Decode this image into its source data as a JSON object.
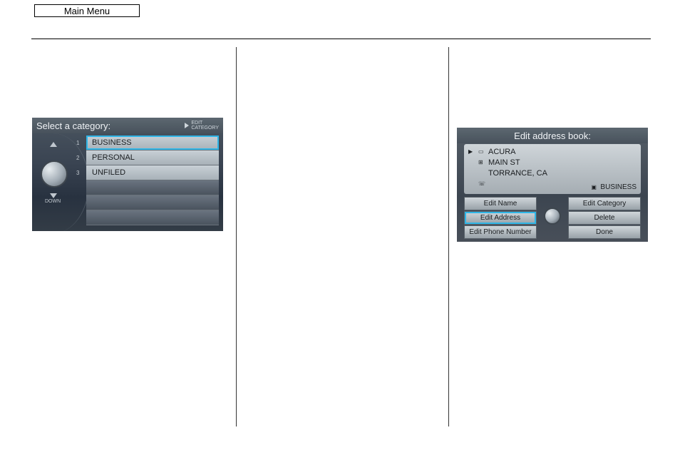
{
  "header": {
    "label": "Main Menu"
  },
  "leftScreen": {
    "title": "Select a category:",
    "editCategory": {
      "line1": "EDIT",
      "line2": "CATEGORY"
    },
    "numbers": [
      "1",
      "2",
      "3"
    ],
    "rows": {
      "r1": "BUSINESS",
      "r2": "PERSONAL",
      "r3": "UNFILED"
    },
    "downLabel": "DOWN"
  },
  "rightScreen": {
    "title": "Edit address book:",
    "info": {
      "name": "ACURA",
      "street": "MAIN ST",
      "city": "TORRANCE, CA",
      "category": "BUSINESS"
    },
    "buttons": {
      "editName": "Edit Name",
      "editCategory": "Edit Category",
      "editAddress": "Edit Address",
      "delete": "Delete",
      "editPhone": "Edit Phone Number",
      "done": "Done"
    }
  }
}
